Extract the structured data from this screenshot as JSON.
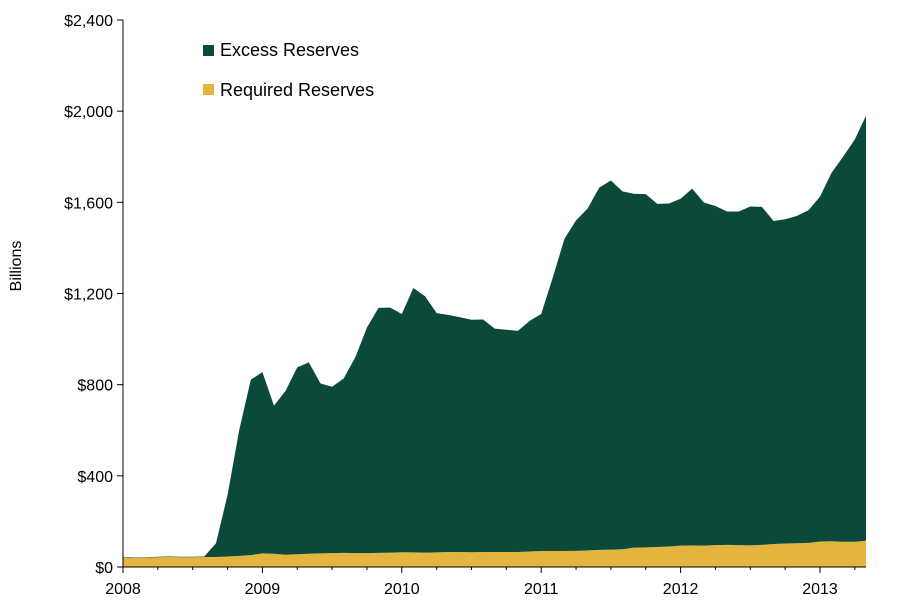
{
  "chart_data": {
    "type": "area",
    "stacked": true,
    "ylabel": "Billions",
    "ylim": [
      0,
      2400
    ],
    "xlim": [
      2008.0,
      2013.33
    ],
    "y_ticks": [
      0,
      400,
      800,
      1200,
      1600,
      2000,
      2400
    ],
    "y_tick_labels": [
      "$0",
      "$400",
      "$800",
      "$1,200",
      "$1,600",
      "$2,000",
      "$2,400"
    ],
    "x_ticks": [
      2008,
      2009,
      2010,
      2011,
      2012,
      2013
    ],
    "x_tick_labels": [
      "2008",
      "2009",
      "2010",
      "2011",
      "2012",
      "2013"
    ],
    "grid": false,
    "legend_position": "top-left",
    "x": [
      2008.0,
      2008.083,
      2008.167,
      2008.25,
      2008.333,
      2008.417,
      2008.5,
      2008.583,
      2008.667,
      2008.75,
      2008.833,
      2008.917,
      2009.0,
      2009.083,
      2009.167,
      2009.25,
      2009.333,
      2009.417,
      2009.5,
      2009.583,
      2009.667,
      2009.75,
      2009.833,
      2009.917,
      2010.0,
      2010.083,
      2010.167,
      2010.25,
      2010.333,
      2010.417,
      2010.5,
      2010.583,
      2010.667,
      2010.75,
      2010.833,
      2010.917,
      2011.0,
      2011.083,
      2011.167,
      2011.25,
      2011.333,
      2011.417,
      2011.5,
      2011.583,
      2011.667,
      2011.75,
      2011.833,
      2011.917,
      2012.0,
      2012.083,
      2012.167,
      2012.25,
      2012.333,
      2012.417,
      2012.5,
      2012.583,
      2012.667,
      2012.75,
      2012.833,
      2012.917,
      2013.0,
      2013.083,
      2013.167,
      2013.25,
      2013.33
    ],
    "series": [
      {
        "name": "Required Reserves",
        "color": "#e3b53e",
        "values": [
          42,
          41,
          41,
          43,
          44,
          43,
          43,
          44,
          44,
          46,
          49,
          52,
          60,
          58,
          54,
          56,
          58,
          60,
          61,
          62,
          61,
          61,
          62,
          63,
          65,
          64,
          63,
          64,
          66,
          66,
          65,
          66,
          66,
          66,
          66,
          68,
          70,
          70,
          70,
          71,
          73,
          75,
          76,
          78,
          85,
          86,
          88,
          90,
          94,
          95,
          94,
          96,
          97,
          96,
          95,
          97,
          101,
          103,
          104,
          106,
          112,
          113,
          111,
          111,
          115
        ]
      },
      {
        "name": "Excess Reserves",
        "color": "#0b4a3a",
        "values": [
          2,
          2,
          2,
          2,
          2,
          2,
          2,
          2,
          60,
          270,
          550,
          770,
          795,
          650,
          720,
          820,
          840,
          745,
          730,
          765,
          860,
          990,
          1075,
          1075,
          1045,
          1160,
          1125,
          1050,
          1040,
          1030,
          1020,
          1020,
          980,
          975,
          970,
          1012,
          1040,
          1200,
          1370,
          1450,
          1500,
          1590,
          1620,
          1570,
          1552,
          1550,
          1505,
          1505,
          1522,
          1565,
          1505,
          1488,
          1463,
          1464,
          1487,
          1483,
          1417,
          1423,
          1436,
          1459,
          1513,
          1617,
          1690,
          1765,
          1865
        ]
      }
    ]
  }
}
